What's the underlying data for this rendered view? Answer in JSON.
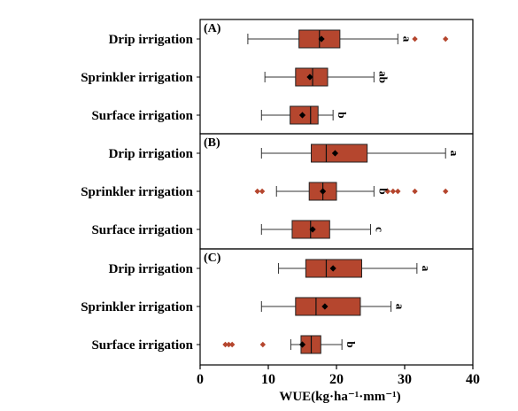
{
  "chart_data": {
    "type": "box",
    "orientation": "horizontal",
    "x_axis": {
      "label": "WUE(kg·ha⁻¹·mm⁻¹)",
      "min": 0,
      "max": 40,
      "ticks": [
        0,
        10,
        20,
        30,
        40
      ]
    },
    "categories": [
      "Drip irrigation",
      "Sprinkler irrigation",
      "Surface irrigation"
    ],
    "colors": {
      "box_fill": "#b5462e",
      "outlier": "#b5462e",
      "mean_marker": "#000000",
      "whisker": "#000000"
    },
    "panels": [
      {
        "label": "(A)",
        "boxes": [
          {
            "category": "Drip irrigation",
            "whisker_low": 7,
            "q1": 14.5,
            "median": 17.5,
            "q3": 20.5,
            "whisker_high": 29,
            "mean": 17.8,
            "outliers": [
              31.5,
              36
            ],
            "significance": "a"
          },
          {
            "category": "Sprinkler irrigation",
            "whisker_low": 9.5,
            "q1": 14,
            "median": 16.5,
            "q3": 18.7,
            "whisker_high": 25.5,
            "mean": 16.1,
            "outliers": [],
            "significance": "ab"
          },
          {
            "category": "Surface irrigation",
            "whisker_low": 9,
            "q1": 13.2,
            "median": 16.2,
            "q3": 17.3,
            "whisker_high": 19.5,
            "mean": 15,
            "outliers": [],
            "significance": "b"
          }
        ]
      },
      {
        "label": "(B)",
        "boxes": [
          {
            "category": "Drip irrigation",
            "whisker_low": 9,
            "q1": 16.3,
            "median": 18.5,
            "q3": 24.5,
            "whisker_high": 36,
            "mean": 19.8,
            "outliers": [],
            "significance": "a"
          },
          {
            "category": "Sprinkler irrigation",
            "whisker_low": 11.2,
            "q1": 16,
            "median": 18,
            "q3": 20,
            "whisker_high": 25.5,
            "mean": 18,
            "outliers": [
              8.4,
              9.1,
              27.5,
              28.3,
              29,
              31.5,
              36
            ],
            "significance": "b"
          },
          {
            "category": "Surface irrigation",
            "whisker_low": 9,
            "q1": 13.5,
            "median": 16.2,
            "q3": 19,
            "whisker_high": 25,
            "mean": 16.5,
            "outliers": [],
            "significance": "c"
          }
        ]
      },
      {
        "label": "(C)",
        "boxes": [
          {
            "category": "Drip irrigation",
            "whisker_low": 11.5,
            "q1": 15.5,
            "median": 18.5,
            "q3": 23.7,
            "whisker_high": 31.8,
            "mean": 19.5,
            "outliers": [],
            "significance": "a"
          },
          {
            "category": "Sprinkler irrigation",
            "whisker_low": 9,
            "q1": 14,
            "median": 17,
            "q3": 23.5,
            "whisker_high": 28,
            "mean": 18.3,
            "outliers": [],
            "significance": "a"
          },
          {
            "category": "Surface irrigation",
            "whisker_low": 13.3,
            "q1": 14.8,
            "median": 16.3,
            "q3": 17.7,
            "whisker_high": 20.8,
            "mean": 15,
            "outliers": [
              3.7,
              4.2,
              4.7,
              9.2
            ],
            "significance": "b"
          }
        ]
      }
    ]
  }
}
